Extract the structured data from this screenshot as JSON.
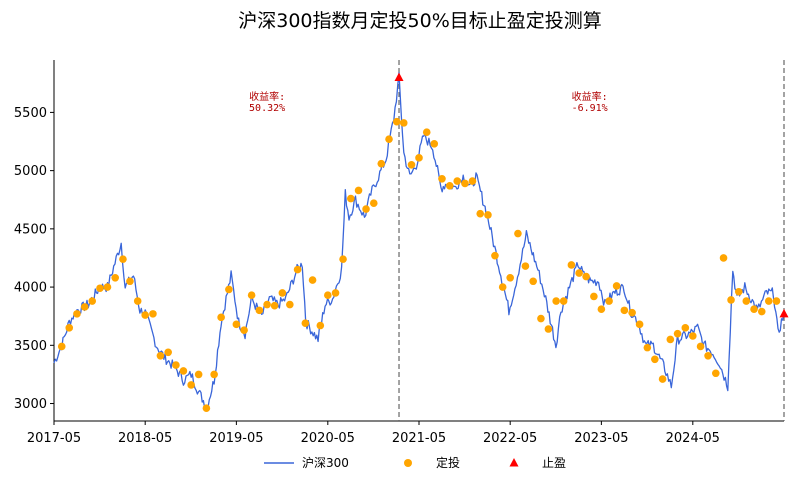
{
  "title": "沪深300指数月定投50%目标止盈定投测算",
  "chart_data": {
    "type": "line",
    "title": "沪深300指数月定投50%目标止盈定投测算",
    "xlabel": "",
    "ylabel": "",
    "xlim": [
      "2017-05-01",
      "2025-05-01"
    ],
    "ylim": [
      2850,
      5950
    ],
    "x_ticks": [
      "2017-05",
      "2018-05",
      "2019-05",
      "2020-05",
      "2021-05",
      "2022-05",
      "2023-05",
      "2024-05"
    ],
    "y_ticks": [
      3000,
      3500,
      4000,
      4500,
      5000,
      5500
    ],
    "grid": false,
    "legend_position": "bottom",
    "series": [
      {
        "name": "沪深300",
        "type": "line",
        "color": "#3a66d9",
        "points": [
          [
            "2017-05-01",
            3350
          ],
          [
            "2017-06-01",
            3500
          ],
          [
            "2017-07-01",
            3700
          ],
          [
            "2017-08-01",
            3800
          ],
          [
            "2017-09-15",
            3850
          ],
          [
            "2017-11-01",
            4000
          ],
          [
            "2017-12-01",
            4000
          ],
          [
            "2018-01-25",
            4380
          ],
          [
            "2018-02-10",
            4000
          ],
          [
            "2018-03-15",
            4100
          ],
          [
            "2018-04-10",
            3800
          ],
          [
            "2018-05-01",
            3780
          ],
          [
            "2018-06-15",
            3500
          ],
          [
            "2018-07-15",
            3400
          ],
          [
            "2018-09-01",
            3300
          ],
          [
            "2018-10-01",
            3200
          ],
          [
            "2018-11-01",
            3250
          ],
          [
            "2018-12-01",
            3100
          ],
          [
            "2019-01-03",
            2970
          ],
          [
            "2019-02-01",
            3200
          ],
          [
            "2019-03-01",
            3700
          ],
          [
            "2019-04-10",
            4100
          ],
          [
            "2019-05-10",
            3700
          ],
          [
            "2019-06-05",
            3600
          ],
          [
            "2019-07-01",
            3900
          ],
          [
            "2019-08-10",
            3750
          ],
          [
            "2019-09-10",
            3900
          ],
          [
            "2019-10-15",
            3850
          ],
          [
            "2019-11-15",
            3900
          ],
          [
            "2019-12-30",
            4150
          ],
          [
            "2020-01-20",
            4200
          ],
          [
            "2020-02-03",
            3700
          ],
          [
            "2020-03-23",
            3550
          ],
          [
            "2020-04-20",
            3850
          ],
          [
            "2020-05-20",
            3900
          ],
          [
            "2020-06-25",
            4150
          ],
          [
            "2020-07-10",
            4800
          ],
          [
            "2020-07-25",
            4600
          ],
          [
            "2020-08-20",
            4750
          ],
          [
            "2020-09-25",
            4600
          ],
          [
            "2020-10-20",
            4800
          ],
          [
            "2020-11-20",
            4950
          ],
          [
            "2020-12-20",
            5100
          ],
          [
            "2021-01-20",
            5450
          ],
          [
            "2021-02-10",
            5800
          ],
          [
            "2021-03-01",
            5150
          ],
          [
            "2021-03-25",
            4950
          ],
          [
            "2021-04-20",
            5050
          ],
          [
            "2021-05-20",
            5300
          ],
          [
            "2021-06-25",
            5200
          ],
          [
            "2021-07-28",
            4850
          ],
          [
            "2021-08-25",
            4900
          ],
          [
            "2021-09-20",
            4850
          ],
          [
            "2021-10-25",
            4950
          ],
          [
            "2021-11-25",
            4850
          ],
          [
            "2021-12-15",
            4950
          ],
          [
            "2022-01-25",
            4650
          ],
          [
            "2022-03-15",
            4200
          ],
          [
            "2022-04-26",
            3800
          ],
          [
            "2022-05-20",
            4000
          ],
          [
            "2022-06-15",
            4250
          ],
          [
            "2022-07-05",
            4450
          ],
          [
            "2022-08-20",
            4150
          ],
          [
            "2022-09-20",
            3900
          ],
          [
            "2022-10-31",
            3500
          ],
          [
            "2022-11-20",
            3800
          ],
          [
            "2023-01-28",
            4200
          ],
          [
            "2023-02-20",
            4100
          ],
          [
            "2023-03-20",
            4050
          ],
          [
            "2023-04-20",
            4050
          ],
          [
            "2023-05-15",
            3850
          ],
          [
            "2023-06-20",
            3950
          ],
          [
            "2023-07-31",
            4000
          ],
          [
            "2023-08-25",
            3800
          ],
          [
            "2023-09-25",
            3700
          ],
          [
            "2023-10-25",
            3500
          ],
          [
            "2023-11-25",
            3500
          ],
          [
            "2024-01-10",
            3300
          ],
          [
            "2024-02-05",
            3150
          ],
          [
            "2024-03-01",
            3550
          ],
          [
            "2024-04-20",
            3600
          ],
          [
            "2024-05-20",
            3650
          ],
          [
            "2024-06-15",
            3500
          ],
          [
            "2024-07-15",
            3450
          ],
          [
            "2024-08-15",
            3350
          ],
          [
            "2024-09-18",
            3150
          ],
          [
            "2024-10-08",
            4150
          ],
          [
            "2024-10-25",
            3900
          ],
          [
            "2024-11-25",
            4000
          ],
          [
            "2024-12-20",
            3900
          ],
          [
            "2025-01-15",
            3800
          ],
          [
            "2025-02-20",
            3950
          ],
          [
            "2025-03-20",
            3950
          ],
          [
            "2025-04-07",
            3600
          ],
          [
            "2025-04-30",
            3770
          ]
        ]
      },
      {
        "name": "定投",
        "type": "scatter",
        "color": "#ffa500",
        "points": [
          [
            "2017-06-01",
            3490
          ],
          [
            "2017-07-01",
            3650
          ],
          [
            "2017-08-01",
            3770
          ],
          [
            "2017-09-01",
            3830
          ],
          [
            "2017-10-01",
            3880
          ],
          [
            "2017-11-01",
            3990
          ],
          [
            "2017-12-01",
            4000
          ],
          [
            "2018-01-01",
            4080
          ],
          [
            "2018-02-01",
            4240
          ],
          [
            "2018-03-01",
            4050
          ],
          [
            "2018-04-01",
            3880
          ],
          [
            "2018-05-01",
            3760
          ],
          [
            "2018-06-01",
            3770
          ],
          [
            "2018-07-01",
            3410
          ],
          [
            "2018-08-01",
            3440
          ],
          [
            "2018-09-01",
            3330
          ],
          [
            "2018-10-01",
            3280
          ],
          [
            "2018-11-01",
            3160
          ],
          [
            "2018-12-01",
            3250
          ],
          [
            "2019-01-01",
            2960
          ],
          [
            "2019-02-01",
            3250
          ],
          [
            "2019-03-01",
            3740
          ],
          [
            "2019-04-01",
            3980
          ],
          [
            "2019-05-01",
            3680
          ],
          [
            "2019-06-01",
            3630
          ],
          [
            "2019-07-01",
            3930
          ],
          [
            "2019-08-01",
            3800
          ],
          [
            "2019-09-01",
            3850
          ],
          [
            "2019-10-01",
            3840
          ],
          [
            "2019-11-01",
            3950
          ],
          [
            "2019-12-01",
            3850
          ],
          [
            "2020-01-01",
            4150
          ],
          [
            "2020-02-01",
            3690
          ],
          [
            "2020-03-01",
            4060
          ],
          [
            "2020-04-01",
            3670
          ],
          [
            "2020-05-01",
            3930
          ],
          [
            "2020-06-01",
            3950
          ],
          [
            "2020-07-01",
            4240
          ],
          [
            "2020-08-01",
            4760
          ],
          [
            "2020-09-01",
            4830
          ],
          [
            "2020-10-01",
            4670
          ],
          [
            "2020-11-01",
            4720
          ],
          [
            "2020-12-01",
            5060
          ],
          [
            "2021-01-01",
            5270
          ],
          [
            "2021-02-01",
            5420
          ],
          [
            "2021-03-01",
            5410
          ],
          [
            "2021-04-01",
            5050
          ],
          [
            "2021-05-01",
            5110
          ],
          [
            "2021-06-01",
            5330
          ],
          [
            "2021-07-01",
            5230
          ],
          [
            "2021-08-01",
            4930
          ],
          [
            "2021-09-01",
            4870
          ],
          [
            "2021-10-01",
            4910
          ],
          [
            "2021-11-01",
            4890
          ],
          [
            "2021-12-01",
            4910
          ],
          [
            "2022-01-01",
            4630
          ],
          [
            "2022-02-01",
            4620
          ],
          [
            "2022-03-01",
            4270
          ],
          [
            "2022-04-01",
            4000
          ],
          [
            "2022-05-01",
            4080
          ],
          [
            "2022-06-01",
            4460
          ],
          [
            "2022-07-01",
            4180
          ],
          [
            "2022-08-01",
            4050
          ],
          [
            "2022-09-01",
            3730
          ],
          [
            "2022-10-01",
            3640
          ],
          [
            "2022-11-01",
            3880
          ],
          [
            "2022-12-01",
            3880
          ],
          [
            "2023-01-01",
            4190
          ],
          [
            "2023-02-01",
            4120
          ],
          [
            "2023-03-01",
            4090
          ],
          [
            "2023-04-01",
            3920
          ],
          [
            "2023-05-01",
            3810
          ],
          [
            "2023-06-01",
            3880
          ],
          [
            "2023-07-01",
            4010
          ],
          [
            "2023-08-01",
            3800
          ],
          [
            "2023-09-01",
            3780
          ],
          [
            "2023-10-01",
            3680
          ],
          [
            "2023-11-01",
            3480
          ],
          [
            "2023-12-01",
            3380
          ],
          [
            "2024-01-01",
            3210
          ],
          [
            "2024-02-01",
            3550
          ],
          [
            "2024-03-01",
            3600
          ],
          [
            "2024-04-01",
            3650
          ],
          [
            "2024-05-01",
            3580
          ],
          [
            "2024-06-01",
            3490
          ],
          [
            "2024-07-01",
            3410
          ],
          [
            "2024-08-01",
            3260
          ],
          [
            "2024-09-01",
            4250
          ],
          [
            "2024-10-01",
            3890
          ],
          [
            "2024-11-01",
            3960
          ],
          [
            "2024-12-01",
            3880
          ],
          [
            "2025-01-01",
            3810
          ],
          [
            "2025-02-01",
            3790
          ],
          [
            "2025-03-01",
            3880
          ],
          [
            "2025-04-01",
            3880
          ]
        ]
      },
      {
        "name": "止盈",
        "type": "scatter",
        "marker": "triangle",
        "color": "#ff0000",
        "points": [
          [
            "2021-02-10",
            5800
          ],
          [
            "2025-05-01",
            3770
          ]
        ]
      }
    ],
    "vertical_lines": [
      "2021-02-10",
      "2025-05-01"
    ],
    "annotations": [
      {
        "label": "收益率:",
        "value": "50.32%",
        "x": "2019-09-01",
        "y": 5650
      },
      {
        "label": "收益率:",
        "value": "-6.91%",
        "x": "2023-03-15",
        "y": 5650
      }
    ]
  }
}
